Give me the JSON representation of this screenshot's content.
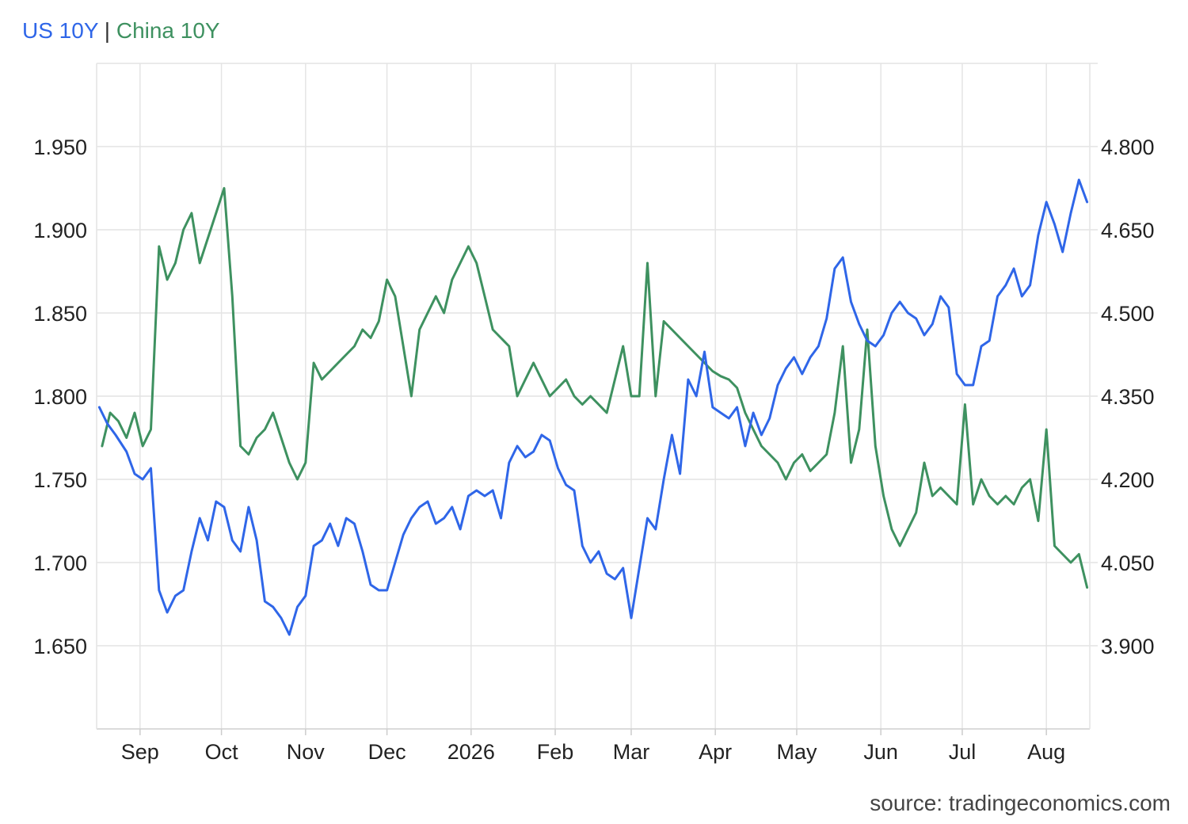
{
  "legend": {
    "us_label": "US 10Y",
    "separator": "|",
    "china_label": "China 10Y"
  },
  "source_text": "source: tradingeconomics.com",
  "colors": {
    "us": "#2f66e8",
    "china": "#3e9160",
    "grid": "#e4e4e4",
    "text": "#222222"
  },
  "chart_data": {
    "type": "line",
    "x_axis": {
      "tick_labels": [
        "Sep",
        "Oct",
        "Nov",
        "Dec",
        "2026",
        "Feb",
        "Mar",
        "Apr",
        "May",
        "Jun",
        "Jul",
        "Aug"
      ],
      "tick_dates": [
        "2025-09-01",
        "2025-10-01",
        "2025-11-01",
        "2025-12-01",
        "2026-01-01",
        "2026-02-01",
        "2026-03-01",
        "2026-04-01",
        "2026-05-01",
        "2026-06-01",
        "2026-07-01",
        "2026-08-01"
      ],
      "range": [
        "2025-08-16",
        "2026-08-17"
      ]
    },
    "y_left": {
      "series": "China 10Y",
      "tick_labels": [
        "1.650",
        "1.700",
        "1.750",
        "1.800",
        "1.850",
        "1.900",
        "1.950"
      ],
      "range": [
        1.6,
        2.0
      ]
    },
    "y_right": {
      "series": "US 10Y",
      "tick_labels": [
        "3.900",
        "4.050",
        "4.200",
        "4.350",
        "4.500",
        "4.650",
        "4.800"
      ],
      "range": [
        3.75,
        4.95
      ]
    },
    "grid": true,
    "series": [
      {
        "name": "US 10Y",
        "axis": "right",
        "x": [
          "2025-08-17",
          "2025-08-20",
          "2025-08-23",
          "2025-08-27",
          "2025-08-30",
          "2025-09-02",
          "2025-09-05",
          "2025-09-08",
          "2025-09-11",
          "2025-09-14",
          "2025-09-17",
          "2025-09-20",
          "2025-09-23",
          "2025-09-26",
          "2025-09-29",
          "2025-10-02",
          "2025-10-05",
          "2025-10-08",
          "2025-10-11",
          "2025-10-14",
          "2025-10-17",
          "2025-10-20",
          "2025-10-23",
          "2025-10-26",
          "2025-10-29",
          "2025-11-01",
          "2025-11-04",
          "2025-11-07",
          "2025-11-10",
          "2025-11-13",
          "2025-11-16",
          "2025-11-19",
          "2025-11-22",
          "2025-11-25",
          "2025-11-28",
          "2025-12-01",
          "2025-12-04",
          "2025-12-07",
          "2025-12-10",
          "2025-12-13",
          "2025-12-16",
          "2025-12-19",
          "2025-12-22",
          "2025-12-25",
          "2025-12-28",
          "2025-12-31",
          "2026-01-03",
          "2026-01-06",
          "2026-01-09",
          "2026-01-12",
          "2026-01-15",
          "2026-01-18",
          "2026-01-21",
          "2026-01-24",
          "2026-01-27",
          "2026-01-30",
          "2026-02-02",
          "2026-02-05",
          "2026-02-08",
          "2026-02-11",
          "2026-02-14",
          "2026-02-17",
          "2026-02-20",
          "2026-02-23",
          "2026-02-26",
          "2026-03-01",
          "2026-03-04",
          "2026-03-07",
          "2026-03-10",
          "2026-03-13",
          "2026-03-16",
          "2026-03-19",
          "2026-03-22",
          "2026-03-25",
          "2026-03-28",
          "2026-03-31",
          "2026-04-03",
          "2026-04-06",
          "2026-04-09",
          "2026-04-12",
          "2026-04-15",
          "2026-04-18",
          "2026-04-21",
          "2026-04-24",
          "2026-04-27",
          "2026-04-30",
          "2026-05-03",
          "2026-05-06",
          "2026-05-09",
          "2026-05-12",
          "2026-05-15",
          "2026-05-18",
          "2026-05-21",
          "2026-05-24",
          "2026-05-27",
          "2026-05-30",
          "2026-06-02",
          "2026-06-05",
          "2026-06-08",
          "2026-06-11",
          "2026-06-14",
          "2026-06-17",
          "2026-06-20",
          "2026-06-23",
          "2026-06-26",
          "2026-06-29",
          "2026-07-02",
          "2026-07-05",
          "2026-07-08",
          "2026-07-11",
          "2026-07-14",
          "2026-07-17",
          "2026-07-20",
          "2026-07-23",
          "2026-07-26",
          "2026-07-29",
          "2026-08-01",
          "2026-08-04",
          "2026-08-07",
          "2026-08-10",
          "2026-08-13",
          "2026-08-16"
        ],
        "values": [
          4.33,
          4.3,
          4.28,
          4.25,
          4.21,
          4.2,
          4.22,
          4.0,
          3.96,
          3.99,
          4.0,
          4.07,
          4.13,
          4.09,
          4.16,
          4.15,
          4.09,
          4.07,
          4.15,
          4.09,
          3.98,
          3.97,
          3.95,
          3.92,
          3.97,
          3.99,
          4.08,
          4.09,
          4.12,
          4.08,
          4.13,
          4.12,
          4.07,
          4.01,
          4.0,
          4.0,
          4.05,
          4.1,
          4.13,
          4.15,
          4.16,
          4.12,
          4.13,
          4.15,
          4.11,
          4.17,
          4.18,
          4.17,
          4.18,
          4.13,
          4.23,
          4.26,
          4.24,
          4.25,
          4.28,
          4.27,
          4.22,
          4.19,
          4.18,
          4.08,
          4.05,
          4.07,
          4.03,
          4.02,
          4.04,
          3.95,
          4.04,
          4.13,
          4.11,
          4.2,
          4.28,
          4.21,
          4.38,
          4.35,
          4.43,
          4.33,
          4.32,
          4.31,
          4.33,
          4.26,
          4.32,
          4.28,
          4.31,
          4.37,
          4.4,
          4.42,
          4.39,
          4.42,
          4.44,
          4.49,
          4.58,
          4.6,
          4.52,
          4.48,
          4.45,
          4.44,
          4.46,
          4.5,
          4.52,
          4.5,
          4.49,
          4.46,
          4.48,
          4.53,
          4.51,
          4.39,
          4.37,
          4.37,
          4.44,
          4.45,
          4.53,
          4.55,
          4.58,
          4.53,
          4.55,
          4.64,
          4.7,
          4.66,
          4.61,
          4.68,
          4.74,
          4.7
        ]
      },
      {
        "name": "China 10Y",
        "axis": "left",
        "x": [
          "2025-08-18",
          "2025-08-21",
          "2025-08-24",
          "2025-08-27",
          "2025-08-30",
          "2025-09-02",
          "2025-09-05",
          "2025-09-08",
          "2025-09-11",
          "2025-09-14",
          "2025-09-17",
          "2025-09-20",
          "2025-09-23",
          "2025-09-26",
          "2025-09-29",
          "2025-10-02",
          "2025-10-05",
          "2025-10-08",
          "2025-10-11",
          "2025-10-14",
          "2025-10-17",
          "2025-10-20",
          "2025-10-23",
          "2025-10-26",
          "2025-10-29",
          "2025-11-01",
          "2025-11-04",
          "2025-11-07",
          "2025-11-10",
          "2025-11-13",
          "2025-11-16",
          "2025-11-19",
          "2025-11-22",
          "2025-11-25",
          "2025-11-28",
          "2025-12-01",
          "2025-12-04",
          "2025-12-07",
          "2025-12-10",
          "2025-12-13",
          "2025-12-16",
          "2025-12-19",
          "2025-12-22",
          "2025-12-25",
          "2025-12-28",
          "2025-12-31",
          "2026-01-03",
          "2026-01-06",
          "2026-01-09",
          "2026-01-12",
          "2026-01-15",
          "2026-01-18",
          "2026-01-21",
          "2026-01-24",
          "2026-01-27",
          "2026-01-30",
          "2026-02-02",
          "2026-02-05",
          "2026-02-08",
          "2026-02-11",
          "2026-02-14",
          "2026-02-17",
          "2026-02-20",
          "2026-02-23",
          "2026-02-26",
          "2026-03-01",
          "2026-03-04",
          "2026-03-07",
          "2026-03-10",
          "2026-03-13",
          "2026-03-16",
          "2026-03-19",
          "2026-03-22",
          "2026-03-25",
          "2026-03-28",
          "2026-03-31",
          "2026-04-03",
          "2026-04-06",
          "2026-04-09",
          "2026-04-12",
          "2026-04-15",
          "2026-04-18",
          "2026-04-21",
          "2026-04-24",
          "2026-04-27",
          "2026-04-30",
          "2026-05-03",
          "2026-05-06",
          "2026-05-09",
          "2026-05-12",
          "2026-05-15",
          "2026-05-18",
          "2026-05-21",
          "2026-05-24",
          "2026-05-27",
          "2026-05-30",
          "2026-06-02",
          "2026-06-05",
          "2026-06-08",
          "2026-06-11",
          "2026-06-14",
          "2026-06-17",
          "2026-06-20",
          "2026-06-23",
          "2026-06-26",
          "2026-06-29",
          "2026-07-02",
          "2026-07-05",
          "2026-07-08",
          "2026-07-11",
          "2026-07-14",
          "2026-07-17",
          "2026-07-20",
          "2026-07-23",
          "2026-07-26",
          "2026-07-29",
          "2026-08-01",
          "2026-08-04",
          "2026-08-07",
          "2026-08-10",
          "2026-08-13",
          "2026-08-16"
        ],
        "values": [
          1.77,
          1.79,
          1.785,
          1.775,
          1.79,
          1.77,
          1.78,
          1.89,
          1.87,
          1.88,
          1.9,
          1.91,
          1.88,
          1.895,
          1.91,
          1.925,
          1.86,
          1.77,
          1.765,
          1.775,
          1.78,
          1.79,
          1.775,
          1.76,
          1.75,
          1.76,
          1.82,
          1.81,
          1.815,
          1.82,
          1.825,
          1.83,
          1.84,
          1.835,
          1.845,
          1.87,
          1.86,
          1.83,
          1.8,
          1.84,
          1.85,
          1.86,
          1.85,
          1.87,
          1.88,
          1.89,
          1.88,
          1.86,
          1.84,
          1.835,
          1.83,
          1.8,
          1.81,
          1.82,
          1.81,
          1.8,
          1.805,
          1.81,
          1.8,
          1.795,
          1.8,
          1.795,
          1.79,
          1.81,
          1.83,
          1.8,
          1.8,
          1.88,
          1.8,
          1.845,
          1.84,
          1.835,
          1.83,
          1.825,
          1.82,
          1.815,
          1.812,
          1.81,
          1.805,
          1.79,
          1.78,
          1.77,
          1.765,
          1.76,
          1.75,
          1.76,
          1.765,
          1.755,
          1.76,
          1.765,
          1.79,
          1.83,
          1.76,
          1.78,
          1.84,
          1.77,
          1.74,
          1.72,
          1.71,
          1.72,
          1.73,
          1.76,
          1.74,
          1.745,
          1.74,
          1.735,
          1.795,
          1.735,
          1.75,
          1.74,
          1.735,
          1.74,
          1.735,
          1.745,
          1.75,
          1.725,
          1.78,
          1.71,
          1.705,
          1.7,
          1.705,
          1.685
        ]
      }
    ]
  }
}
